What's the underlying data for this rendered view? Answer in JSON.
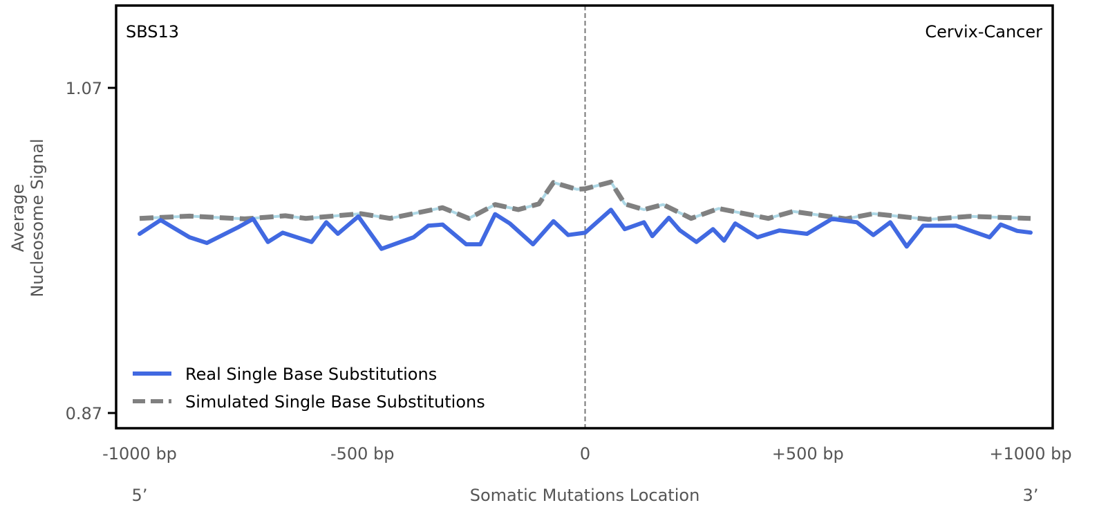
{
  "chart_data": {
    "type": "line",
    "title_left": "SBS13",
    "title_right": "Cervix-Cancer",
    "xlabel": "Somatic Mutations Location",
    "ylabel_lines": [
      "Average",
      "Nucleosome Signal"
    ],
    "xlim": [
      -1000,
      1000
    ],
    "ylim": [
      0.87,
      1.07
    ],
    "x_ticks": [
      {
        "value": -1000,
        "label": "-1000 bp"
      },
      {
        "value": -500,
        "label": "-500 bp"
      },
      {
        "value": 0,
        "label": "0"
      },
      {
        "value": 500,
        "label": "+500 bp"
      },
      {
        "value": 1000,
        "label": "+1000 bp"
      }
    ],
    "y_ticks": [
      {
        "value": 1.07,
        "label": "1.07"
      },
      {
        "value": 0.87,
        "label": "0.87"
      }
    ],
    "end_labels": {
      "left": "5’",
      "right": "3’"
    },
    "reference_line_x": 0,
    "legend_position": "bottom-left",
    "series": [
      {
        "name": "Real Single Base Substitutions",
        "color": "#4169e1",
        "style": "solid",
        "x": [
          -1000,
          -953,
          -888,
          -849,
          -777,
          -745,
          -712,
          -679,
          -614,
          -581,
          -555,
          -509,
          -457,
          -385,
          -352,
          -320,
          -267,
          -235,
          -202,
          -169,
          -117,
          -71,
          -38,
          0,
          58,
          89,
          132,
          151,
          188,
          213,
          250,
          287,
          312,
          337,
          387,
          436,
          498,
          554,
          610,
          647,
          685,
          722,
          759,
          833,
          908,
          933,
          970,
          1000
        ],
        "y": [
          0.9802,
          0.9887,
          0.9781,
          0.9746,
          0.9845,
          0.9894,
          0.9752,
          0.9809,
          0.9752,
          0.9873,
          0.9802,
          0.9909,
          0.971,
          0.9781,
          0.9852,
          0.9859,
          0.9738,
          0.9738,
          0.9923,
          0.9866,
          0.9738,
          0.988,
          0.9795,
          0.9809,
          0.995,
          0.9831,
          0.9873,
          0.9788,
          0.9901,
          0.9823,
          0.9752,
          0.9831,
          0.976,
          0.9866,
          0.9781,
          0.9823,
          0.9802,
          0.9894,
          0.9873,
          0.9795,
          0.9873,
          0.9724,
          0.9852,
          0.9852,
          0.9781,
          0.9859,
          0.982,
          0.981
        ]
      },
      {
        "name": "Simulated Single Base Substitutions",
        "color": "#808080",
        "underlay_color": "#add8e6",
        "style": "dashed",
        "x": [
          -1000,
          -888,
          -764,
          -673,
          -627,
          -503,
          -438,
          -320,
          -261,
          -202,
          -150,
          -104,
          -71,
          -19,
          0,
          58,
          89,
          132,
          175,
          238,
          300,
          411,
          467,
          585,
          647,
          771,
          864,
          1000
        ],
        "y": [
          0.9897,
          0.9911,
          0.9894,
          0.9913,
          0.9897,
          0.9926,
          0.9897,
          0.9963,
          0.9897,
          0.9982,
          0.9951,
          0.9986,
          1.0118,
          1.0076,
          1.0079,
          1.0121,
          0.9986,
          0.9951,
          0.9982,
          0.9897,
          0.9958,
          0.9897,
          0.994,
          0.9894,
          0.9926,
          0.9891,
          0.991,
          0.9897
        ]
      }
    ]
  }
}
